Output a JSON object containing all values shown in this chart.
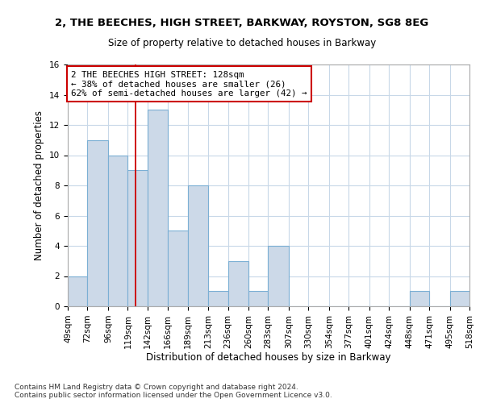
{
  "title1": "2, THE BEECHES, HIGH STREET, BARKWAY, ROYSTON, SG8 8EG",
  "title2": "Size of property relative to detached houses in Barkway",
  "xlabel": "Distribution of detached houses by size in Barkway",
  "ylabel": "Number of detached properties",
  "footnote": "Contains HM Land Registry data © Crown copyright and database right 2024.\nContains public sector information licensed under the Open Government Licence v3.0.",
  "bin_edges": [
    49,
    72,
    96,
    119,
    142,
    166,
    189,
    213,
    236,
    260,
    283,
    307,
    330,
    354,
    377,
    401,
    424,
    448,
    471,
    495,
    518
  ],
  "counts": [
    2,
    11,
    10,
    9,
    13,
    5,
    8,
    1,
    3,
    1,
    4,
    0,
    0,
    0,
    0,
    0,
    0,
    1,
    0,
    1
  ],
  "property_size": 128,
  "bar_color": "#ccd9e8",
  "bar_edge_color": "#7bafd4",
  "grid_color": "#c8d8e8",
  "vline_color": "#cc0000",
  "annotation_text": "2 THE BEECHES HIGH STREET: 128sqm\n← 38% of detached houses are smaller (26)\n62% of semi-detached houses are larger (42) →",
  "annotation_box_color": "white",
  "annotation_box_edge": "#cc0000",
  "bg_color": "white",
  "ylim": [
    0,
    16
  ],
  "yticks": [
    0,
    2,
    4,
    6,
    8,
    10,
    12,
    14,
    16
  ],
  "title1_fontsize": 9.5,
  "title2_fontsize": 8.5,
  "ylabel_fontsize": 8.5,
  "xlabel_fontsize": 8.5,
  "tick_fontsize": 7.5,
  "footnote_fontsize": 6.5
}
